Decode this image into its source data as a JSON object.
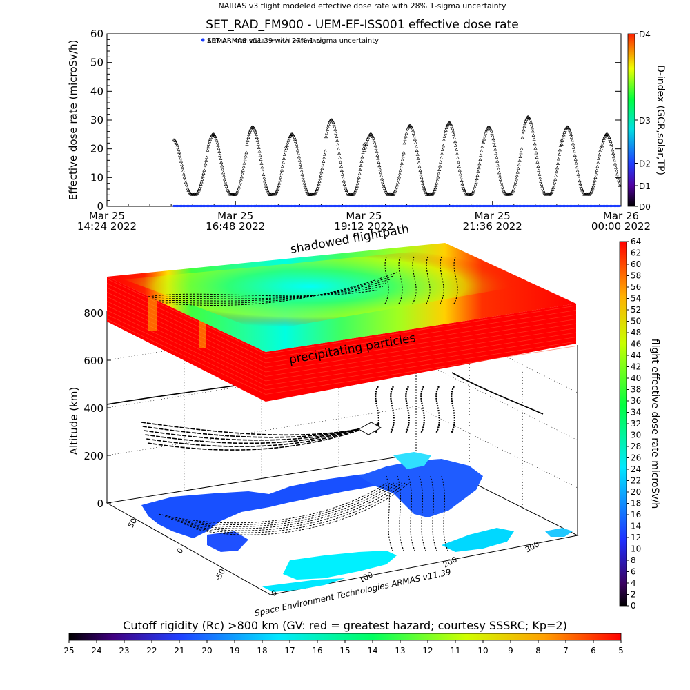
{
  "header": {
    "nairas_title": "NAIRAS v3 flight modeled effective dose rate with 28% 1-sigma uncertainty",
    "main_title": "SET_RAD_FM900 - UEM-EF-ISS001 effective dose rate",
    "legend_1": "ARMAS statistical model estimate",
    "legend_2": "SET ARMAS v11.39 with 27% 1-sigma uncertainty"
  },
  "colors": {
    "armas_blue": "#1a3cff",
    "grid": "#000000"
  },
  "chart_data": [
    {
      "type": "scatter",
      "ylabel": "Effective dose rate (microSv/h)",
      "ylim": [
        0,
        60
      ],
      "yticks": [
        "0",
        "10",
        "20",
        "30",
        "40",
        "50",
        "60"
      ],
      "x_tick_labels": [
        {
          "line1": "Mar 25",
          "line2": "14:24 2022"
        },
        {
          "line1": "Mar 25",
          "line2": "16:48 2022"
        },
        {
          "line1": "Mar 25",
          "line2": "19:12 2022"
        },
        {
          "line1": "Mar 25",
          "line2": "21:36 2022"
        },
        {
          "line1": "Mar 26",
          "line2": "00:00 2022"
        }
      ],
      "xlim_hours": [
        0,
        9.6
      ],
      "data_start_hours": 1.25,
      "orbit_period_hours": 0.735,
      "series": [
        {
          "name": "ARMAS statistical model estimate",
          "marker": "triangle",
          "orbit_peaks_microSv_h": [
            23,
            25,
            27.5,
            25,
            30,
            25,
            28,
            29,
            27.5,
            31,
            27.5,
            25
          ],
          "baseline_microSv_h": 4
        },
        {
          "name": "SET ARMAS v11.39 with 27% 1-sigma uncertainty",
          "marker": "dot",
          "value_microSv_h": 0
        }
      ],
      "right_axis": {
        "label": "D-index (GCR,solar,TP)",
        "ticks": [
          "D0",
          "D1",
          "D2",
          "D3",
          "D4"
        ]
      }
    },
    {
      "type": "heatmap",
      "ylabel": "Altitude (km)",
      "zticks": [
        "0",
        "200",
        "400",
        "600",
        "800"
      ],
      "lat_ticks": [
        "50",
        "0",
        "-50"
      ],
      "lon_ticks": [
        "0",
        "100",
        "200",
        "300"
      ],
      "annotation_top": "shadowed flightpath",
      "annotation_front": "precipitating particles",
      "credit": "Space Environment Technologies ARMAS v11.39"
    }
  ],
  "right_colorbar": {
    "label": "flight effective dose rate microSv/h",
    "ticks": [
      "0",
      "2",
      "4",
      "6",
      "8",
      "10",
      "12",
      "14",
      "16",
      "18",
      "20",
      "22",
      "24",
      "26",
      "28",
      "30",
      "32",
      "34",
      "36",
      "38",
      "40",
      "42",
      "44",
      "46",
      "48",
      "50",
      "52",
      "54",
      "56",
      "58",
      "60",
      "62",
      "64"
    ]
  },
  "bottom_colorbar": {
    "title": "Cutoff rigidity (Rc) >800 km (GV: red = greatest hazard; courtesy SSSRC; Kp=2)",
    "ticks": [
      "25",
      "24",
      "23",
      "22",
      "21",
      "20",
      "19",
      "18",
      "17",
      "16",
      "15",
      "14",
      "13",
      "12",
      "11",
      "10",
      "9",
      "8",
      "7",
      "6",
      "5"
    ]
  }
}
